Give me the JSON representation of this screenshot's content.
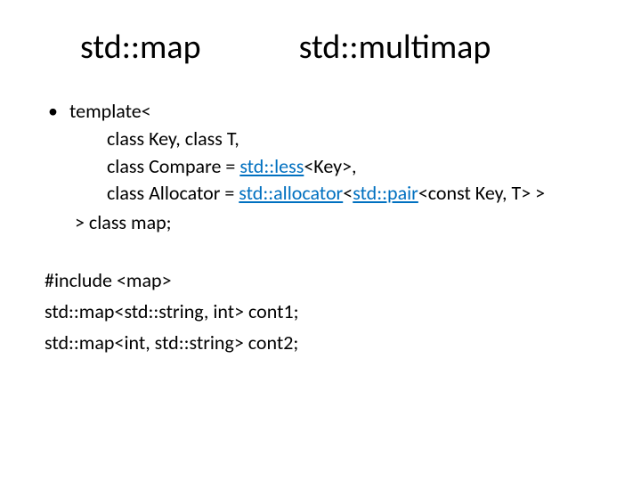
{
  "title": {
    "left": "std::map",
    "right": "std::multimap"
  },
  "tpl": {
    "open": "template<",
    "l1": "class Key, class T,",
    "l2a": "class Compare = ",
    "l2link": "std::less",
    "l2b": "<Key>,",
    "l3a": "class Allocator = ",
    "l3link1": "std::allocator",
    "l3b": "<",
    "l3link2": "std::pair",
    "l3c": "<const Key, T> >",
    "close": "> class map;"
  },
  "usage": {
    "include": "#include <map>",
    "line1": "std::map<std::string, int>   cont1;",
    "line2": "std::map<int, std::string>   cont2;"
  },
  "colors": {
    "text": "#000000",
    "link": "#0070c0",
    "bg": "#ffffff"
  }
}
